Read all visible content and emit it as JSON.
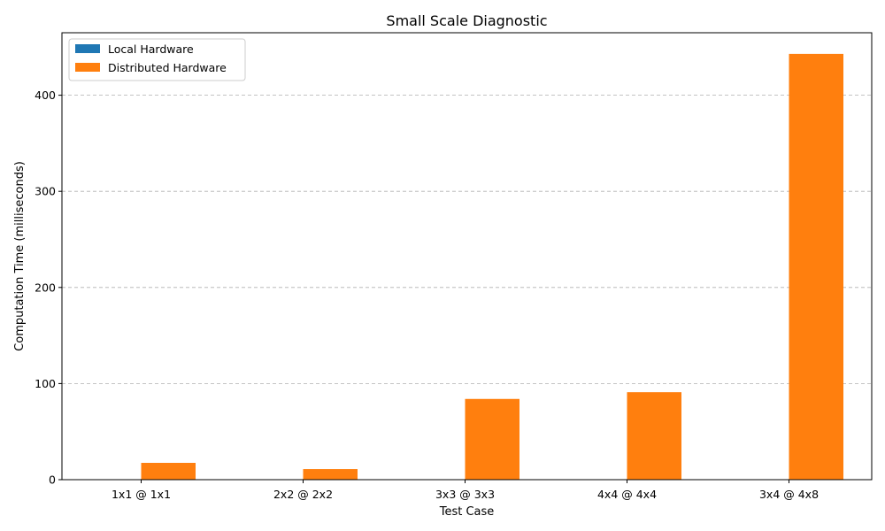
{
  "chart_data": {
    "type": "bar",
    "title": "Small Scale Diagnostic",
    "xlabel": "Test Case",
    "ylabel": "Computation Time (milliseconds)",
    "categories": [
      "1x1 @ 1x1",
      "2x2 @ 2x2",
      "3x3 @ 3x3",
      "4x4 @ 4x4",
      "3x4 @ 4x8"
    ],
    "series": [
      {
        "name": "Local Hardware",
        "color": "#1f77b4",
        "values": [
          0.05,
          0.05,
          0.05,
          0.05,
          0.05
        ]
      },
      {
        "name": "Distributed Hardware",
        "color": "#ff7f0e",
        "values": [
          17.5,
          11,
          84,
          91,
          443
        ]
      }
    ],
    "ylim": [
      0,
      465
    ],
    "yticks": [
      0,
      100,
      200,
      300,
      400
    ],
    "grid": "y-dashed",
    "legend_position": "top-left"
  }
}
